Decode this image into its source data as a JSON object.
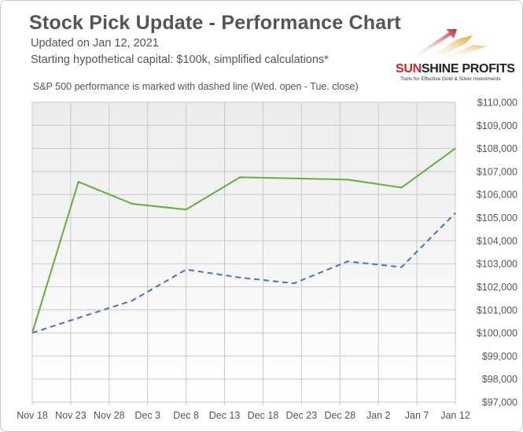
{
  "header": {
    "title": "Stock Pick Update - Performance Chart",
    "updated": "Updated on Jan 12, 2021",
    "capital": "Starting hypothetical capital: $100k, simplified calculations*",
    "note": "S&P 500 performance is marked with dashed line (Wed. open - Tue. close)"
  },
  "logo": {
    "name_part1": "SUN",
    "name_part2": "SHINE PROFITS",
    "tagline": "Tools for Effective Gold & Silver Investments"
  },
  "colors": {
    "portfolio": "#6aab3e",
    "sp500": "#4472c4",
    "plot_bg_top": "#ececec",
    "plot_bg_bottom": "#ffffff",
    "grid": "#c9c9c9",
    "logo_red": "#c0262d",
    "logo_gold": "#e0a82e"
  },
  "chart_data": {
    "type": "line",
    "title": "Stock Pick Update - Performance Chart",
    "xlabel": "",
    "ylabel": "",
    "x_tick_labels": [
      "Nov 18",
      "Nov 23",
      "Nov 28",
      "Dec 3",
      "Dec 8",
      "Dec 13",
      "Dec 18",
      "Dec 23",
      "Dec 28",
      "Jan 2",
      "Jan 7",
      "Jan 12"
    ],
    "x_tick_days": [
      0,
      5,
      10,
      15,
      20,
      25,
      30,
      35,
      40,
      45,
      50,
      55
    ],
    "y_tick_labels": [
      "$97,000",
      "$98,000",
      "$99,000",
      "$100,000",
      "$101,000",
      "$102,000",
      "$103,000",
      "$104,000",
      "$105,000",
      "$106,000",
      "$107,000",
      "$108,000",
      "$109,000",
      "$110,000"
    ],
    "ylim": [
      97000,
      110000
    ],
    "y_step": 1000,
    "x_range": [
      0,
      55
    ],
    "grid": true,
    "legend": "none",
    "series": [
      {
        "style": "solid",
        "points": [
          {
            "date": "Nov 18",
            "value": 100000
          },
          {
            "date": "Nov 24",
            "value": 106550
          },
          {
            "date": "Dec 1",
            "value": 105600
          },
          {
            "date": "Dec 8",
            "value": 105350
          },
          {
            "date": "Dec 15",
            "value": 106750
          },
          {
            "date": "Dec 22",
            "value": 106700
          },
          {
            "date": "Dec 29",
            "value": 106650
          },
          {
            "date": "Jan 5",
            "value": 106300
          },
          {
            "date": "Jan 12",
            "value": 108000
          }
        ],
        "x_days": [
          0,
          6,
          13,
          20,
          27,
          34,
          41,
          48,
          55
        ]
      },
      {
        "style": "dashed",
        "points": [
          {
            "date": "Nov 18",
            "value": 100000
          },
          {
            "date": "Nov 24",
            "value": 100650
          },
          {
            "date": "Dec 1",
            "value": 101400
          },
          {
            "date": "Dec 8",
            "value": 102750
          },
          {
            "date": "Dec 15",
            "value": 102400
          },
          {
            "date": "Dec 22",
            "value": 102150
          },
          {
            "date": "Dec 29",
            "value": 103100
          },
          {
            "date": "Jan 5",
            "value": 102850
          },
          {
            "date": "Jan 12",
            "value": 105200
          }
        ],
        "x_days": [
          0,
          6,
          13,
          20,
          27,
          34,
          41,
          48,
          55
        ]
      }
    ]
  }
}
